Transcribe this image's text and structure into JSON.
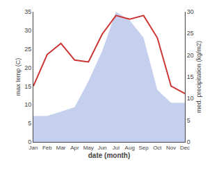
{
  "chart_data": {
    "type": "line",
    "categories": [
      "Jan",
      "Feb",
      "Mar",
      "Apr",
      "May",
      "Jun",
      "Jul",
      "Aug",
      "Sep",
      "Oct",
      "Nov",
      "Dec"
    ],
    "series": [
      {
        "type": "area",
        "axis": "y2",
        "color": "#c5d0ee",
        "values": [
          6.0,
          6.0,
          7.0,
          8.0,
          14.0,
          21.0,
          30.0,
          28.0,
          24.0,
          12.0,
          9.0,
          9.0
        ]
      },
      {
        "type": "line",
        "color": "#cc3333",
        "values": [
          15.0,
          23.5,
          26.5,
          22.0,
          21.5,
          29.0,
          34.0,
          33.0,
          34.0,
          28.0,
          15.0,
          13.0
        ]
      }
    ],
    "xlabel": "date (month)",
    "ylabel": "max temp (C)",
    "y2label": "med. precipitation (kg/m2)",
    "ylim": [
      0,
      35
    ],
    "yticks": [
      0,
      5,
      10,
      15,
      20,
      25,
      30,
      35
    ],
    "y2lim": [
      0,
      30
    ],
    "y2ticks": [
      0,
      5,
      10,
      15,
      20,
      25,
      30
    ],
    "grid": false
  }
}
